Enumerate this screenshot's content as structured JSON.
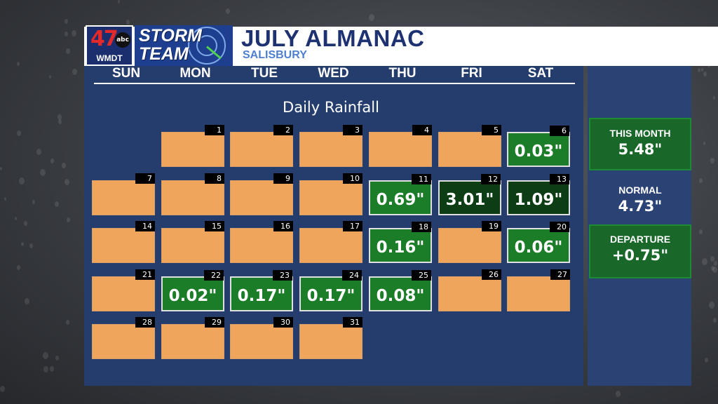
{
  "header": {
    "station_number": "47",
    "network": "abc",
    "call_sign": "WMDT",
    "brand_line1": "STORM",
    "brand_line2": "TEAM",
    "title": "JULY ALMANAC",
    "subtitle": "SALISBURY"
  },
  "days_of_week": [
    "SUN",
    "MON",
    "TUE",
    "WED",
    "THU",
    "FRI",
    "SAT"
  ],
  "chart_title": "Daily Rainfall",
  "calendar": [
    {
      "date": "1",
      "col": 1,
      "row": 0,
      "rain": ""
    },
    {
      "date": "2",
      "col": 2,
      "row": 0,
      "rain": ""
    },
    {
      "date": "3",
      "col": 3,
      "row": 0,
      "rain": ""
    },
    {
      "date": "4",
      "col": 4,
      "row": 0,
      "rain": ""
    },
    {
      "date": "5",
      "col": 5,
      "row": 0,
      "rain": ""
    },
    {
      "date": "6",
      "col": 6,
      "row": 0,
      "rain": "0.03\""
    },
    {
      "date": "7",
      "col": 0,
      "row": 1,
      "rain": ""
    },
    {
      "date": "8",
      "col": 1,
      "row": 1,
      "rain": ""
    },
    {
      "date": "9",
      "col": 2,
      "row": 1,
      "rain": ""
    },
    {
      "date": "10",
      "col": 3,
      "row": 1,
      "rain": ""
    },
    {
      "date": "11",
      "col": 4,
      "row": 1,
      "rain": "0.69\""
    },
    {
      "date": "12",
      "col": 5,
      "row": 1,
      "rain": "3.01\"",
      "heavy": true
    },
    {
      "date": "13",
      "col": 6,
      "row": 1,
      "rain": "1.09\"",
      "heavy": true
    },
    {
      "date": "14",
      "col": 0,
      "row": 2,
      "rain": ""
    },
    {
      "date": "15",
      "col": 1,
      "row": 2,
      "rain": ""
    },
    {
      "date": "16",
      "col": 2,
      "row": 2,
      "rain": ""
    },
    {
      "date": "17",
      "col": 3,
      "row": 2,
      "rain": ""
    },
    {
      "date": "18",
      "col": 4,
      "row": 2,
      "rain": "0.16\""
    },
    {
      "date": "19",
      "col": 5,
      "row": 2,
      "rain": ""
    },
    {
      "date": "20",
      "col": 6,
      "row": 2,
      "rain": "0.06\""
    },
    {
      "date": "21",
      "col": 0,
      "row": 3,
      "rain": ""
    },
    {
      "date": "22",
      "col": 1,
      "row": 3,
      "rain": "0.02\""
    },
    {
      "date": "23",
      "col": 2,
      "row": 3,
      "rain": "0.17\""
    },
    {
      "date": "24",
      "col": 3,
      "row": 3,
      "rain": "0.17\""
    },
    {
      "date": "25",
      "col": 4,
      "row": 3,
      "rain": "0.08\""
    },
    {
      "date": "26",
      "col": 5,
      "row": 3,
      "rain": ""
    },
    {
      "date": "27",
      "col": 6,
      "row": 3,
      "rain": ""
    },
    {
      "date": "28",
      "col": 0,
      "row": 4,
      "rain": ""
    },
    {
      "date": "29",
      "col": 1,
      "row": 4,
      "rain": ""
    },
    {
      "date": "30",
      "col": 2,
      "row": 4,
      "rain": ""
    },
    {
      "date": "31",
      "col": 3,
      "row": 4,
      "rain": ""
    }
  ],
  "stats": {
    "this_month": {
      "label": "THIS MONTH",
      "value": "5.48\""
    },
    "normal": {
      "label": "NORMAL",
      "value": "4.73\""
    },
    "departure": {
      "label": "DEPARTURE",
      "value": "+0.75\""
    }
  },
  "colors": {
    "dry": "#efa65c",
    "wet": "#1b7d28",
    "heavy": "#0d3d14",
    "panel": "#253d6d"
  }
}
